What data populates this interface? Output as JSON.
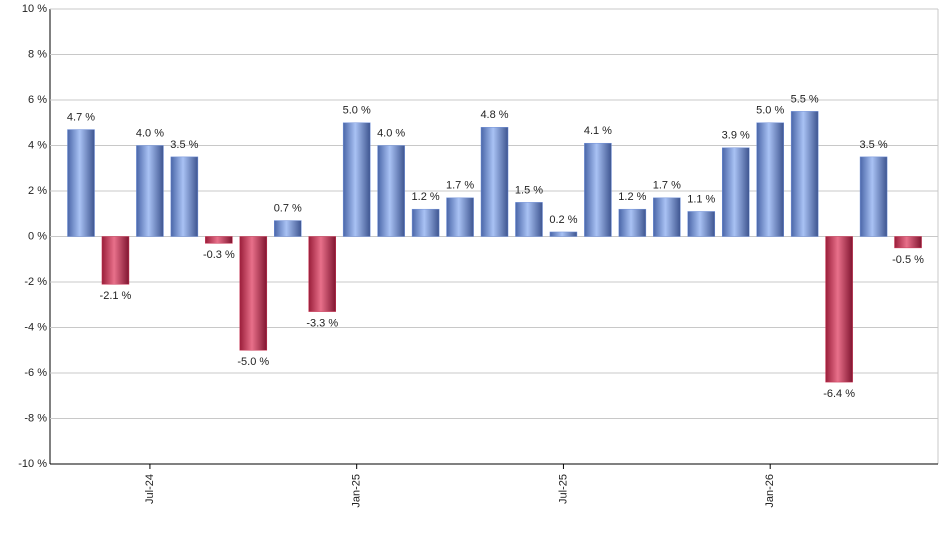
{
  "chart_data": {
    "type": "bar",
    "categories": [
      null,
      null,
      "Jul-24",
      null,
      null,
      null,
      null,
      null,
      "Jan-25",
      null,
      null,
      null,
      null,
      null,
      "Jul-25",
      null,
      null,
      null,
      null,
      null,
      "Jan-26",
      null,
      null,
      null,
      null
    ],
    "values": [
      4.7,
      -2.1,
      4.0,
      3.5,
      -0.3,
      -5.0,
      0.7,
      -3.3,
      5.0,
      4.0,
      1.2,
      1.7,
      4.8,
      1.5,
      0.2,
      4.1,
      1.2,
      1.7,
      1.1,
      3.9,
      5.0,
      5.5,
      -6.4,
      3.5,
      -0.5
    ],
    "value_labels": [
      "4.7 %",
      "-2.1 %",
      "4.0 %",
      "3.5 %",
      "-0.3 %",
      "-5.0 %",
      "0.7 %",
      "-3.3 %",
      "5.0 %",
      "4.0 %",
      "1.2 %",
      "1.7 %",
      "4.8 %",
      "1.5 %",
      "0.2 %",
      "4.1 %",
      "1.2 %",
      "1.7 %",
      "1.1 %",
      "3.9 %",
      "5.0 %",
      "5.5 %",
      "-6.4 %",
      "3.5 %",
      "-0.5 %"
    ],
    "positive_color": "#6f8fd8",
    "negative_color": "#c8304f",
    "ylim": [
      -10,
      10
    ],
    "yticks": [
      {
        "value": -10,
        "label": "-10 %"
      },
      {
        "value": -8,
        "label": "-8 %"
      },
      {
        "value": -6,
        "label": "-6 %"
      },
      {
        "value": -4,
        "label": "-4 %"
      },
      {
        "value": -2,
        "label": "-2 %"
      },
      {
        "value": 0,
        "label": "0 %"
      },
      {
        "value": 2,
        "label": "2 %"
      },
      {
        "value": 4,
        "label": "4 %"
      },
      {
        "value": 6,
        "label": "6 %"
      },
      {
        "value": 8,
        "label": "8 %"
      },
      {
        "value": 10,
        "label": "10 %"
      }
    ],
    "grid": true
  }
}
